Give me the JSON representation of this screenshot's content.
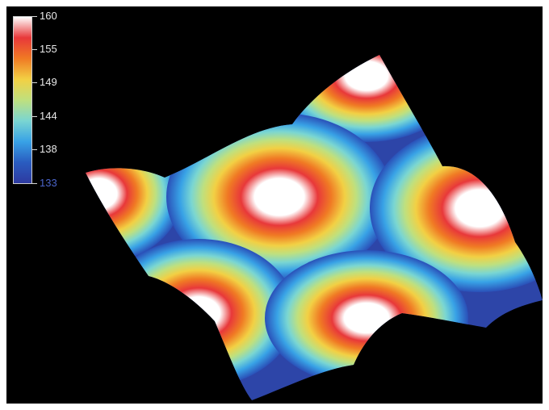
{
  "colorbar": {
    "ticks": [
      "160",
      "155",
      "149",
      "144",
      "138",
      "133"
    ],
    "stops": [
      "#ffffff",
      "#e8383a",
      "#f07a24",
      "#f2d044",
      "#bfe07e",
      "#7ad6d2",
      "#38a2e6",
      "#2a5cc0",
      "#2e3aa0"
    ]
  },
  "colors": {
    "background": "#000000",
    "frame": "#ffffff"
  }
}
